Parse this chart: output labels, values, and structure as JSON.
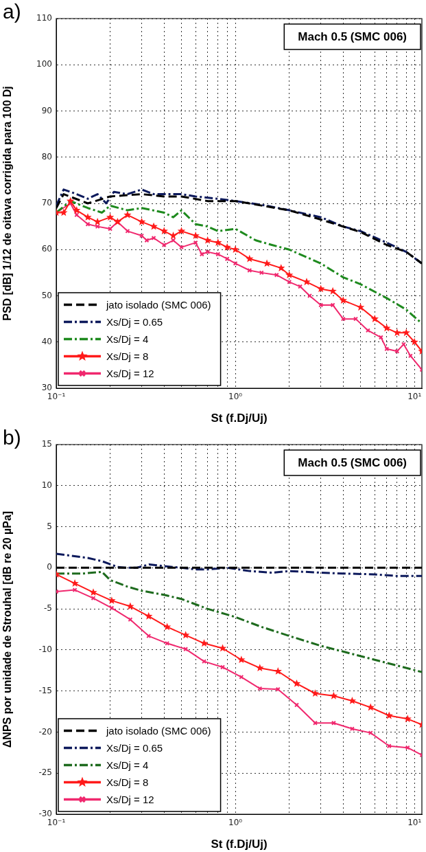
{
  "chart_data": [
    {
      "type": "line",
      "title": "a)",
      "xlabel": "St (f.Dj/Uj)",
      "ylabel": "PSD [dB] 1/12 de oitava corrigida para 100 Dj",
      "annotations": [
        "Mach 0.5 (SMC 006)"
      ],
      "log": "x",
      "grid": true,
      "legend": "bottom left",
      "xlim": [
        0.1,
        11
      ],
      "ylim": [
        30,
        110
      ],
      "xticks": [
        {
          "value": 0.1,
          "label": "10⁻¹"
        },
        {
          "value": 0.2,
          "label": null
        },
        {
          "value": 0.3,
          "label": null
        },
        {
          "value": 0.4,
          "label": null
        },
        {
          "value": 0.5,
          "label": null
        },
        {
          "value": 0.6,
          "label": null
        },
        {
          "value": 0.7,
          "label": null
        },
        {
          "value": 0.8,
          "label": null
        },
        {
          "value": 0.9,
          "label": null
        },
        {
          "value": 1,
          "label": "10⁰"
        },
        {
          "value": 2,
          "label": null
        },
        {
          "value": 3,
          "label": null
        },
        {
          "value": 4,
          "label": null
        },
        {
          "value": 5,
          "label": null
        },
        {
          "value": 6,
          "label": null
        },
        {
          "value": 7,
          "label": null
        },
        {
          "value": 8,
          "label": null
        },
        {
          "value": 9,
          "label": null
        },
        {
          "value": 10,
          "label": "10¹"
        }
      ],
      "yticks": [
        30,
        40,
        50,
        60,
        70,
        80,
        90,
        100,
        110
      ],
      "series": [
        {
          "name": "jato isolado (SMC 006)",
          "color": "#000000",
          "line_style": "dashed",
          "marker": "none",
          "x": [
            0.1,
            0.11,
            0.15,
            0.2,
            0.3,
            0.4,
            0.5,
            0.7,
            1,
            2,
            3,
            5,
            7,
            9,
            11
          ],
          "values": [
            69,
            72,
            70,
            71.5,
            72,
            71.5,
            71.5,
            70.5,
            70.5,
            68.5,
            66.5,
            63.8,
            61,
            59.5,
            57
          ]
        },
        {
          "name": "Xs/Dj = 0.65",
          "color": "#0d1a5c",
          "line_style": "dashdot",
          "marker": "none",
          "x": [
            0.1,
            0.11,
            0.13,
            0.15,
            0.17,
            0.19,
            0.21,
            0.25,
            0.3,
            0.35,
            0.4,
            0.5,
            0.6,
            0.8,
            1,
            1.5,
            2,
            3,
            4,
            5,
            7,
            9,
            11
          ],
          "values": [
            69.5,
            73,
            72,
            71,
            72,
            70,
            72.5,
            72,
            73,
            72,
            72,
            72,
            71.5,
            71,
            70.5,
            69.5,
            68.5,
            67,
            65,
            64,
            61.5,
            59.5,
            57
          ]
        },
        {
          "name": "Xs/Dj = 4",
          "color": "#1e8a1e",
          "line_style": "dashdot",
          "marker": "none",
          "x": [
            0.1,
            0.12,
            0.15,
            0.18,
            0.2,
            0.25,
            0.3,
            0.4,
            0.45,
            0.5,
            0.6,
            0.7,
            0.8,
            1,
            1.3,
            1.6,
            2,
            3,
            4,
            5,
            7,
            9,
            11
          ],
          "values": [
            68,
            70.5,
            69,
            68,
            69.5,
            68.5,
            69,
            68,
            67,
            68.5,
            65.5,
            65,
            64,
            64.5,
            62,
            61,
            60,
            57,
            54,
            52.5,
            49.5,
            47,
            44
          ]
        },
        {
          "name": "Xs/Dj = 8",
          "color": "#ff1a1a",
          "line_style": "solid",
          "marker": "star",
          "x": [
            0.1,
            0.11,
            0.12,
            0.13,
            0.15,
            0.17,
            0.2,
            0.22,
            0.25,
            0.3,
            0.35,
            0.4,
            0.45,
            0.5,
            0.6,
            0.7,
            0.8,
            0.9,
            1,
            1.2,
            1.5,
            1.8,
            2,
            2.5,
            3,
            3.5,
            4,
            5,
            6,
            7,
            8,
            9,
            10,
            11
          ],
          "values": [
            68,
            68,
            70.5,
            68.5,
            67,
            66,
            67,
            66,
            67.5,
            66,
            65,
            64,
            63,
            64,
            63,
            62,
            61.5,
            60.5,
            60,
            58,
            57,
            56,
            54.5,
            53,
            51.5,
            51,
            49,
            47.5,
            45,
            43,
            42,
            42,
            40,
            38
          ]
        },
        {
          "name": "Xs/Dj = 12",
          "color": "#f0286e",
          "line_style": "solid",
          "marker": "cross",
          "x": [
            0.1,
            0.12,
            0.13,
            0.15,
            0.17,
            0.2,
            0.22,
            0.25,
            0.3,
            0.32,
            0.35,
            0.4,
            0.45,
            0.5,
            0.6,
            0.65,
            0.7,
            0.8,
            0.9,
            1,
            1.2,
            1.4,
            1.7,
            2,
            2.3,
            2.6,
            3,
            3.5,
            4,
            4.7,
            5.5,
            6.5,
            7,
            8,
            8.7,
            9.5,
            11
          ],
          "values": [
            68,
            70,
            67.5,
            65.5,
            65,
            64.5,
            66,
            64,
            63,
            62,
            62.5,
            61,
            62,
            60.5,
            61.5,
            59,
            59.5,
            59,
            58,
            57,
            55.5,
            55,
            54.5,
            53,
            52,
            50,
            48,
            48,
            45,
            45,
            42.5,
            41,
            38.5,
            38,
            39.5,
            37,
            34
          ]
        }
      ]
    },
    {
      "type": "line",
      "title": "b)",
      "xlabel": "St (f.Dj/Uj)",
      "ylabel": "ΔNPS por unidade de Strouhal [dB re 20 µPa]",
      "annotations": [
        "Mach 0.5 (SMC 006)"
      ],
      "log": "x",
      "grid": true,
      "legend": "bottom left",
      "xlim": [
        0.1,
        11
      ],
      "ylim": [
        -30,
        15
      ],
      "xticks": [
        {
          "value": 0.1,
          "label": "10⁻¹"
        },
        {
          "value": 0.2,
          "label": null
        },
        {
          "value": 0.3,
          "label": null
        },
        {
          "value": 0.4,
          "label": null
        },
        {
          "value": 0.5,
          "label": null
        },
        {
          "value": 0.6,
          "label": null
        },
        {
          "value": 0.7,
          "label": null
        },
        {
          "value": 0.8,
          "label": null
        },
        {
          "value": 0.9,
          "label": null
        },
        {
          "value": 1,
          "label": "10⁰"
        },
        {
          "value": 2,
          "label": null
        },
        {
          "value": 3,
          "label": null
        },
        {
          "value": 4,
          "label": null
        },
        {
          "value": 5,
          "label": null
        },
        {
          "value": 6,
          "label": null
        },
        {
          "value": 7,
          "label": null
        },
        {
          "value": 8,
          "label": null
        },
        {
          "value": 9,
          "label": null
        },
        {
          "value": 10,
          "label": "10¹"
        }
      ],
      "yticks": [
        -30,
        -25,
        -20,
        -15,
        -10,
        -5,
        0,
        5,
        10,
        15
      ],
      "series": [
        {
          "name": "jato isolado (SMC 006)",
          "color": "#000000",
          "line_style": "dashed",
          "marker": "none",
          "x": [
            0.1,
            1,
            11
          ],
          "values": [
            0,
            0,
            0
          ]
        },
        {
          "name": "Xs/Dj = 0.65",
          "color": "#0d1a5c",
          "line_style": "dashdot",
          "marker": "none",
          "x": [
            0.1,
            0.15,
            0.18,
            0.22,
            0.25,
            0.28,
            0.33,
            0.4,
            0.5,
            0.6,
            0.7,
            0.9,
            1.2,
            1.6,
            2,
            3,
            4,
            6,
            8,
            11
          ],
          "values": [
            1.7,
            1.2,
            0.8,
            0.1,
            0,
            0,
            0.4,
            0.2,
            0,
            -0.2,
            -0.2,
            0,
            -0.4,
            -0.6,
            -0.4,
            -0.6,
            -0.7,
            -0.8,
            -1,
            -1
          ]
        },
        {
          "name": "Xs/Dj = 4",
          "color": "#1e6b1e",
          "line_style": "dashdot",
          "marker": "none",
          "x": [
            0.1,
            0.14,
            0.18,
            0.2,
            0.25,
            0.3,
            0.4,
            0.5,
            0.7,
            1,
            1.4,
            2,
            3,
            4,
            6,
            8,
            11
          ],
          "values": [
            -0.7,
            -0.7,
            -0.5,
            -1.5,
            -2.3,
            -2.8,
            -3.3,
            -3.8,
            -5,
            -6,
            -7.2,
            -8.3,
            -9.5,
            -10.2,
            -11.2,
            -11.9,
            -12.7
          ]
        },
        {
          "name": "Xs/Dj = 8",
          "color": "#ff1a1a",
          "line_style": "solid",
          "marker": "star",
          "x": [
            0.1,
            0.127,
            0.161,
            0.204,
            0.259,
            0.328,
            0.416,
            0.528,
            0.669,
            0.849,
            1.08,
            1.37,
            1.73,
            2.2,
            2.79,
            3.54,
            4.49,
            5.69,
            7.22,
            9.16,
            11
          ],
          "values": [
            -0.8,
            -1.9,
            -3,
            -4,
            -4.7,
            -5.9,
            -7.2,
            -8.2,
            -9.2,
            -9.8,
            -11.2,
            -12.2,
            -12.6,
            -14.1,
            -15.3,
            -15.6,
            -16.2,
            -17,
            -18,
            -18.4,
            -19.1
          ]
        },
        {
          "name": "Xs/Dj = 12",
          "color": "#f0286e",
          "line_style": "solid",
          "marker": "cross",
          "x": [
            0.1,
            0.127,
            0.161,
            0.204,
            0.259,
            0.328,
            0.416,
            0.528,
            0.669,
            0.849,
            1.08,
            1.37,
            1.73,
            2.2,
            2.79,
            3.54,
            4.49,
            5.69,
            7.22,
            9.16,
            11
          ],
          "values": [
            -2.9,
            -2.7,
            -3.7,
            -4.9,
            -6.3,
            -8.3,
            -9.2,
            -9.9,
            -11.4,
            -12.1,
            -13.3,
            -14.7,
            -14.8,
            -16.7,
            -18.9,
            -18.9,
            -19.6,
            -20.1,
            -21.7,
            -21.9,
            -22.8
          ]
        }
      ]
    }
  ]
}
